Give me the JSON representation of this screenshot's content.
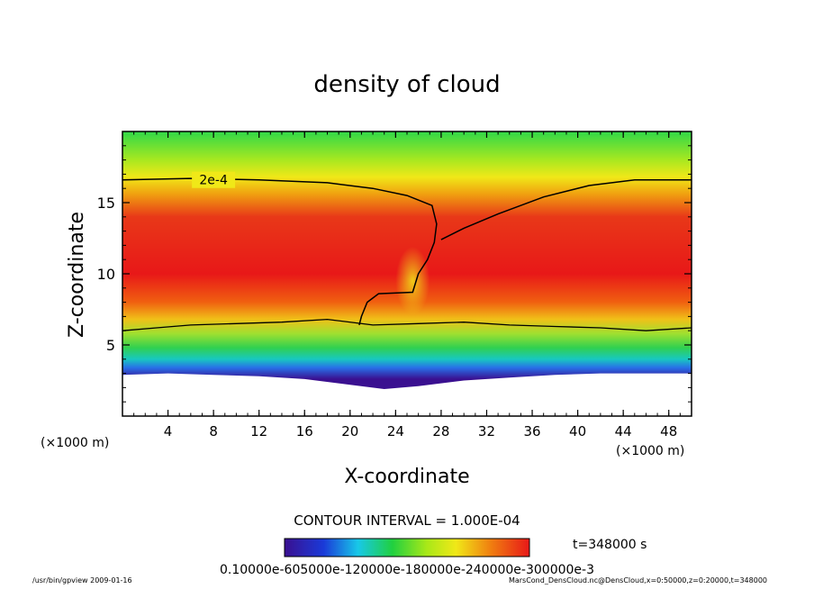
{
  "chart_data": {
    "type": "heatmap",
    "title": "density of cloud",
    "xlabel": "X-coordinate",
    "ylabel": "Z-coordinate",
    "x_unit": "(×1000 m)",
    "y_unit": "(×1000 m)",
    "xlim": [
      0,
      50
    ],
    "ylim": [
      0,
      20
    ],
    "x_ticks": [
      4,
      8,
      12,
      16,
      20,
      24,
      28,
      32,
      36,
      40,
      44,
      48
    ],
    "y_ticks": [
      5,
      10,
      15
    ],
    "contour_label": "2e-4",
    "contour_interval_text": "CONTOUR INTERVAL = 1.000E-04",
    "time_text": "t=348000 s",
    "colorbar_labels_text": "0.10000e-605000e-120000e-180000e-240000e-300000e-3",
    "colorbar_range": [
      1e-05,
      0.0003
    ],
    "colormap": [
      "#3a1090",
      "#1a3ad8",
      "#18c8e8",
      "#20d040",
      "#a8e818",
      "#f0e818",
      "#f08010",
      "#e81818"
    ],
    "contour_2e-4": [
      [
        0,
        16.6
      ],
      [
        6,
        16.7
      ],
      [
        12,
        16.6
      ],
      [
        18,
        16.4
      ],
      [
        22,
        16.0
      ],
      [
        25,
        15.5
      ],
      [
        27.2,
        14.8
      ],
      [
        27.6,
        13.5
      ],
      [
        27.4,
        12.2
      ],
      [
        26.8,
        11.0
      ],
      [
        26.0,
        10.0
      ],
      [
        25.5,
        8.7
      ],
      [
        22.5,
        8.6
      ],
      [
        21.5,
        8.0
      ],
      [
        21.0,
        7.0
      ],
      [
        20.8,
        6.4
      ]
    ],
    "contour_2e-4_right": [
      [
        28,
        12.4
      ],
      [
        30,
        13.2
      ],
      [
        33,
        14.2
      ],
      [
        37,
        15.4
      ],
      [
        41,
        16.2
      ],
      [
        45,
        16.6
      ],
      [
        50,
        16.6
      ]
    ],
    "contour_lower": [
      [
        0,
        6.0
      ],
      [
        3,
        6.2
      ],
      [
        6,
        6.4
      ],
      [
        10,
        6.5
      ],
      [
        14,
        6.6
      ],
      [
        18,
        6.8
      ],
      [
        22,
        6.4
      ],
      [
        26,
        6.5
      ],
      [
        30,
        6.6
      ],
      [
        34,
        6.4
      ],
      [
        38,
        6.3
      ],
      [
        42,
        6.2
      ],
      [
        46,
        6.0
      ],
      [
        50,
        6.2
      ]
    ],
    "cloud_base": [
      [
        0,
        2.9
      ],
      [
        4,
        3.0
      ],
      [
        8,
        2.9
      ],
      [
        12,
        2.8
      ],
      [
        16,
        2.6
      ],
      [
        20,
        2.2
      ],
      [
        23,
        1.9
      ],
      [
        26,
        2.1
      ],
      [
        30,
        2.5
      ],
      [
        34,
        2.7
      ],
      [
        38,
        2.9
      ],
      [
        42,
        3.0
      ],
      [
        46,
        3.0
      ],
      [
        50,
        3.0
      ]
    ]
  },
  "footer": {
    "left": "/usr/bin/gpview   2009-01-16",
    "right": "MarsCond_DensCloud.nc@DensCloud,x=0:50000,z=0:20000,t=348000"
  }
}
